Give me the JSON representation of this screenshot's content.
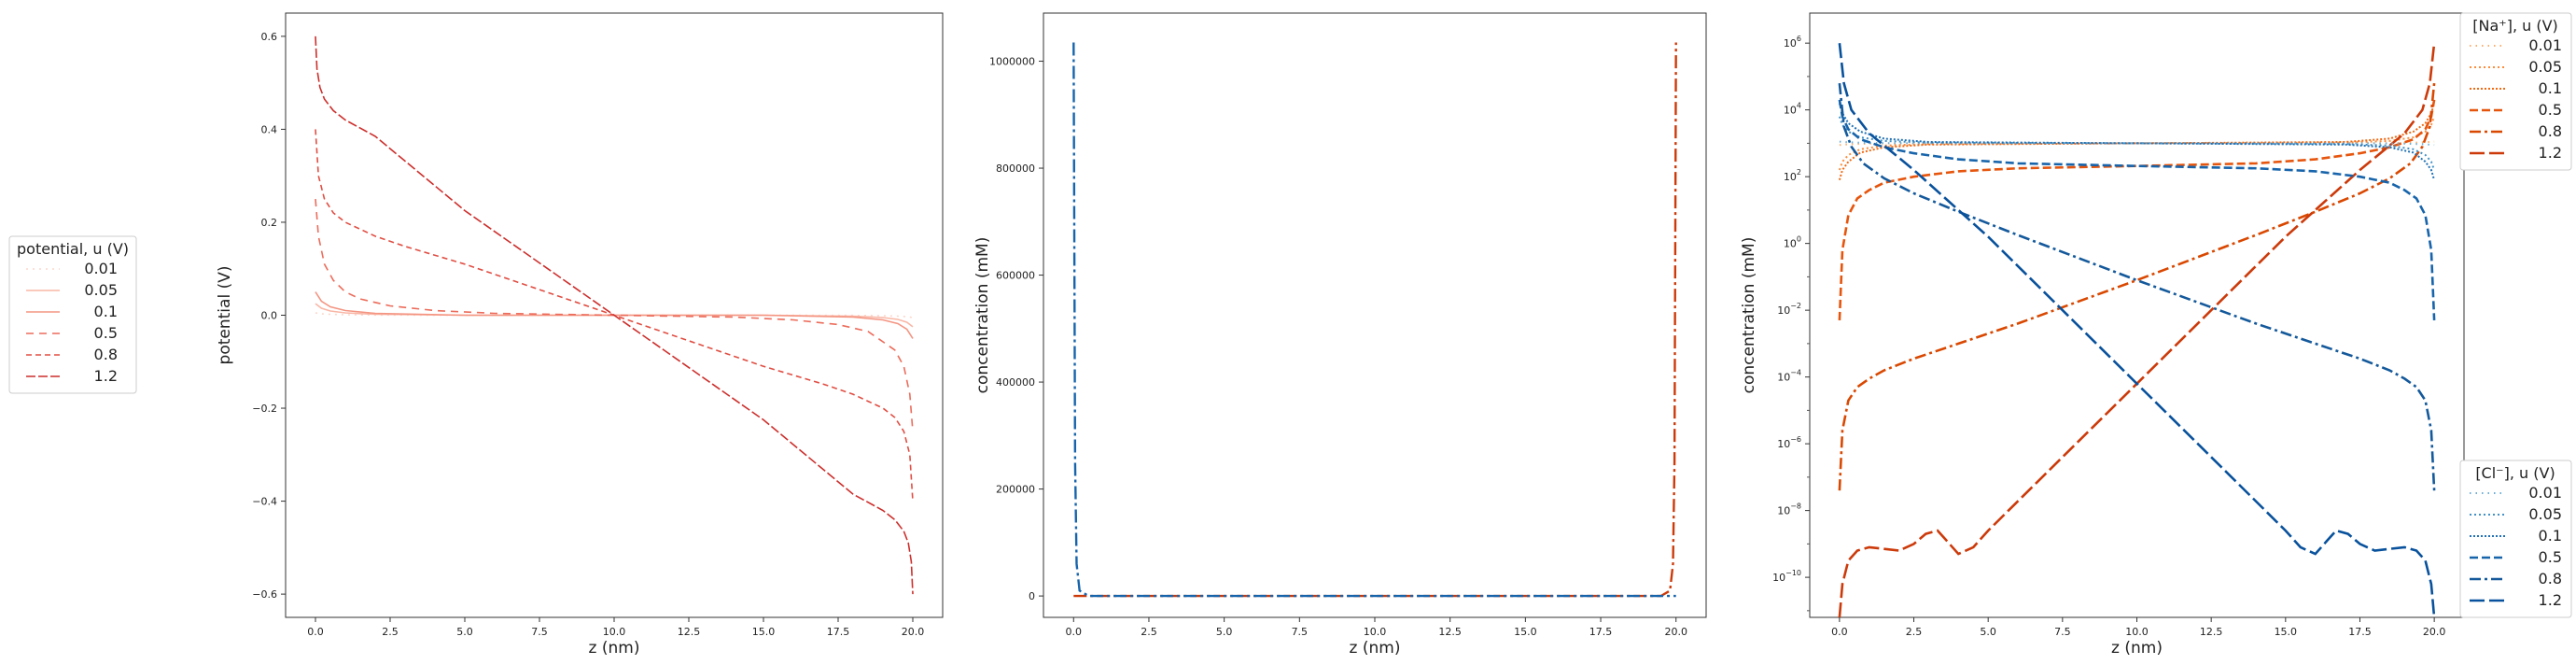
{
  "chart_data": [
    {
      "type": "line",
      "xlabel": "z (nm)",
      "ylabel": "potential (V)",
      "xlim": [
        -1,
        21
      ],
      "ylim": [
        -0.65,
        0.65
      ],
      "xticks": [
        0.0,
        2.5,
        5.0,
        7.5,
        10.0,
        12.5,
        15.0,
        17.5,
        20.0
      ],
      "xtick_labels": [
        "0.0",
        "2.5",
        "5.0",
        "7.5",
        "10.0",
        "12.5",
        "15.0",
        "17.5",
        "20.0"
      ],
      "yticks": [
        -0.6,
        -0.4,
        -0.2,
        0.0,
        0.2,
        0.4,
        0.6
      ],
      "ytick_labels": [
        "−0.6",
        "−0.4",
        "−0.2",
        "0.0",
        "0.2",
        "0.4",
        "0.6"
      ],
      "y_scale": "linear",
      "grid": false,
      "legend": {
        "title": "potential, u (V)",
        "placement": "left-outside",
        "entries": [
          "0.01",
          "0.05",
          "0.1",
          "0.5",
          "0.8",
          "1.2"
        ]
      },
      "series_colors": [
        "#fcd7cc",
        "#f9b7a6",
        "#f49582",
        "#ec6c5b",
        "#e04e43",
        "#cc2f2c"
      ],
      "series": [
        {
          "name": "0.01",
          "x": [
            0,
            0.2,
            0.5,
            1,
            2,
            5,
            10,
            15,
            18,
            19,
            19.5,
            19.8,
            20
          ],
          "y": [
            0.005,
            0.003,
            0.002,
            0.001,
            0.0005,
            0.0,
            0.0,
            0.0,
            -0.0005,
            -0.001,
            -0.002,
            -0.003,
            -0.005
          ]
        },
        {
          "name": "0.05",
          "x": [
            0,
            0.2,
            0.5,
            1,
            2,
            5,
            10,
            15,
            18,
            19,
            19.5,
            19.8,
            20
          ],
          "y": [
            0.025,
            0.015,
            0.009,
            0.005,
            0.002,
            0.0,
            0.0,
            0.0,
            -0.002,
            -0.005,
            -0.009,
            -0.015,
            -0.025
          ]
        },
        {
          "name": "0.1",
          "x": [
            0,
            0.2,
            0.5,
            1,
            2,
            5,
            10,
            15,
            18,
            19,
            19.5,
            19.8,
            20
          ],
          "y": [
            0.05,
            0.03,
            0.018,
            0.01,
            0.004,
            0.0,
            0.0,
            0.0,
            -0.004,
            -0.01,
            -0.018,
            -0.03,
            -0.05
          ]
        },
        {
          "name": "0.5",
          "x": [
            0,
            0.1,
            0.3,
            0.6,
            1,
            1.5,
            2.5,
            4,
            6,
            10,
            14,
            16,
            17.5,
            18.5,
            19.4,
            19.7,
            19.9,
            20
          ],
          "y": [
            0.25,
            0.17,
            0.11,
            0.075,
            0.05,
            0.035,
            0.02,
            0.01,
            0.004,
            0.0,
            -0.004,
            -0.01,
            -0.02,
            -0.035,
            -0.075,
            -0.11,
            -0.17,
            -0.25
          ]
        },
        {
          "name": "0.8",
          "x": [
            0,
            0.1,
            0.3,
            0.6,
            1,
            1.5,
            2,
            3,
            5,
            7.5,
            10,
            12.5,
            15,
            17,
            18,
            18.5,
            19,
            19.4,
            19.7,
            19.9,
            20
          ],
          "y": [
            0.4,
            0.3,
            0.25,
            0.22,
            0.2,
            0.185,
            0.17,
            0.148,
            0.11,
            0.055,
            0.0,
            -0.055,
            -0.11,
            -0.148,
            -0.17,
            -0.185,
            -0.2,
            -0.22,
            -0.25,
            -0.3,
            -0.4
          ]
        },
        {
          "name": "1.2",
          "x": [
            0,
            0.05,
            0.15,
            0.3,
            0.6,
            1,
            2,
            5,
            10,
            15,
            18,
            19,
            19.4,
            19.7,
            19.85,
            19.95,
            20
          ],
          "y": [
            0.6,
            0.53,
            0.49,
            0.465,
            0.44,
            0.42,
            0.385,
            0.225,
            0.0,
            -0.225,
            -0.385,
            -0.42,
            -0.44,
            -0.465,
            -0.49,
            -0.53,
            -0.6
          ]
        }
      ]
    },
    {
      "type": "line",
      "xlabel": "z (nm)",
      "ylabel": "concentration (mM)",
      "xlim": [
        -1,
        21
      ],
      "ylim": [
        -40000,
        1090000
      ],
      "xticks": [
        0.0,
        2.5,
        5.0,
        7.5,
        10.0,
        12.5,
        15.0,
        17.5,
        20.0
      ],
      "xtick_labels": [
        "0.0",
        "2.5",
        "5.0",
        "7.5",
        "10.0",
        "12.5",
        "15.0",
        "17.5",
        "20.0"
      ],
      "yticks": [
        0,
        200000,
        400000,
        600000,
        800000,
        1000000
      ],
      "ytick_labels": [
        "0",
        "200000",
        "400000",
        "600000",
        "800000",
        "1000000"
      ],
      "y_scale": "linear",
      "grid": false,
      "series": [
        {
          "color": "#cc3a0a",
          "x": [
            0,
            0.1,
            0.5,
            19.5,
            19.8,
            19.9,
            19.95,
            20
          ],
          "y": [
            0,
            0,
            0,
            0,
            10000,
            60000,
            250000,
            1035000
          ]
        },
        {
          "color": "#1764ab",
          "x": [
            0,
            0.05,
            0.1,
            0.2,
            0.5,
            20
          ],
          "y": [
            1035000,
            250000,
            60000,
            10000,
            0,
            0
          ]
        }
      ]
    },
    {
      "type": "line",
      "xlabel": "z (nm)",
      "ylabel": "concentration (mM)",
      "xlim": [
        -1,
        21
      ],
      "ylim_log10": [
        -11.2,
        6.9
      ],
      "y_scale": "log",
      "xticks": [
        0.0,
        2.5,
        5.0,
        7.5,
        10.0,
        12.5,
        15.0,
        17.5,
        20.0
      ],
      "xtick_labels": [
        "0.0",
        "2.5",
        "5.0",
        "7.5",
        "10.0",
        "12.5",
        "15.0",
        "17.5",
        "20.0"
      ],
      "ytick_exponents": [
        -10,
        -8,
        -6,
        -4,
        -2,
        0,
        2,
        4,
        6
      ],
      "grid": false,
      "legend_na": {
        "title": "[Na⁺], u (V)",
        "placement": "upper-right-outside",
        "entries": [
          "0.01",
          "0.05",
          "0.1",
          "0.5",
          "0.8",
          "1.2"
        ]
      },
      "legend_cl": {
        "title": "[Cl⁻], u (V)",
        "placement": "lower-right-outside",
        "entries": [
          "0.01",
          "0.05",
          "0.1",
          "0.5",
          "0.8",
          "1.2"
        ]
      },
      "na_colors": [
        "#fdae6b",
        "#fd8d3c",
        "#f16913",
        "#e6550d",
        "#d94801",
        "#cc3a0a"
      ],
      "cl_colors": [
        "#6baed6",
        "#4292c6",
        "#2171b5",
        "#1764ab",
        "#14599b",
        "#08519c"
      ],
      "series_na": [
        {
          "name": "0.01",
          "x": [
            0,
            0.3,
            1,
            2,
            10,
            18,
            19,
            19.7,
            20
          ],
          "log10_y": [
            2.95,
            2.97,
            2.99,
            3.0,
            3.0,
            3.0,
            3.01,
            3.03,
            3.05
          ]
        },
        {
          "name": "0.05",
          "x": [
            0,
            0.1,
            0.3,
            0.7,
            1.5,
            3,
            10,
            17,
            18.5,
            19.3,
            19.7,
            19.9,
            20
          ],
          "log10_y": [
            2.2,
            2.45,
            2.65,
            2.82,
            2.93,
            2.98,
            3.0,
            3.02,
            3.07,
            3.18,
            3.35,
            3.55,
            3.8
          ]
        },
        {
          "name": "0.1",
          "x": [
            0,
            0.1,
            0.3,
            0.7,
            1.5,
            3,
            10,
            17,
            18.5,
            19.3,
            19.7,
            19.9,
            20
          ],
          "log10_y": [
            1.9,
            2.2,
            2.45,
            2.72,
            2.88,
            2.96,
            3.0,
            3.04,
            3.14,
            3.35,
            3.6,
            3.9,
            4.2
          ]
        },
        {
          "name": "0.5",
          "x": [
            0,
            0.1,
            0.3,
            0.6,
            1,
            1.5,
            2.5,
            4,
            6,
            10,
            14,
            16,
            17.5,
            18.5,
            19.3,
            19.7,
            19.9,
            20
          ],
          "log10_y": [
            -2.3,
            -0.2,
            0.85,
            1.35,
            1.6,
            1.82,
            2.0,
            2.16,
            2.25,
            2.32,
            2.4,
            2.52,
            2.7,
            2.88,
            3.12,
            3.42,
            3.8,
            4.3
          ]
        },
        {
          "name": "0.8",
          "x": [
            0,
            0.1,
            0.3,
            0.6,
            1,
            1.5,
            2.5,
            4,
            6,
            10,
            14,
            16,
            17.5,
            18.5,
            19.2,
            19.6,
            19.85,
            20
          ],
          "log10_y": [
            -7.4,
            -5.6,
            -4.7,
            -4.3,
            -4.05,
            -3.8,
            -3.45,
            -3.0,
            -2.4,
            -1.1,
            0.25,
            0.95,
            1.5,
            1.95,
            2.4,
            2.9,
            3.5,
            4.8
          ]
        },
        {
          "name": "1.2",
          "x": [
            0,
            0.1,
            0.3,
            0.6,
            1,
            1.5,
            2,
            2.5,
            2.9,
            3.3,
            3.6,
            4.0,
            4.5,
            5,
            7.5,
            10,
            12.5,
            15,
            17.5,
            19,
            19.6,
            19.85,
            20
          ],
          "log10_y": [
            -11.2,
            -10.2,
            -9.5,
            -9.2,
            -9.1,
            -9.15,
            -9.2,
            -9.0,
            -8.7,
            -8.6,
            -8.9,
            -9.3,
            -9.1,
            -8.6,
            -6.4,
            -4.2,
            -2.0,
            0.2,
            2.2,
            3.3,
            4.0,
            4.8,
            6.0
          ]
        }
      ],
      "series_cl": [
        {
          "name": "0.01",
          "x": [
            0,
            0.3,
            1,
            2,
            10,
            18,
            19,
            19.7,
            20
          ],
          "log10_y": [
            3.05,
            3.03,
            3.01,
            3.0,
            3.0,
            3.0,
            2.99,
            2.97,
            2.95
          ]
        },
        {
          "name": "0.05",
          "x": [
            0,
            0.1,
            0.3,
            0.7,
            1.5,
            3,
            10,
            17,
            18.5,
            19.3,
            19.7,
            19.9,
            20
          ],
          "log10_y": [
            3.8,
            3.55,
            3.35,
            3.18,
            3.07,
            3.02,
            3.0,
            2.98,
            2.93,
            2.82,
            2.65,
            2.45,
            2.2
          ]
        },
        {
          "name": "0.1",
          "x": [
            0,
            0.1,
            0.3,
            0.7,
            1.5,
            3,
            10,
            17,
            18.5,
            19.3,
            19.7,
            19.9,
            20
          ],
          "log10_y": [
            4.2,
            3.9,
            3.6,
            3.35,
            3.14,
            3.04,
            3.0,
            2.96,
            2.88,
            2.72,
            2.45,
            2.2,
            1.9
          ]
        },
        {
          "name": "0.5",
          "x": [
            0,
            0.1,
            0.3,
            0.7,
            1.5,
            2.5,
            4,
            6,
            10,
            14,
            16,
            17.5,
            18.5,
            19,
            19.4,
            19.7,
            19.9,
            20
          ],
          "log10_y": [
            4.3,
            3.8,
            3.42,
            3.12,
            2.88,
            2.7,
            2.52,
            2.4,
            2.32,
            2.25,
            2.16,
            2.0,
            1.82,
            1.6,
            1.35,
            0.85,
            -0.2,
            -2.3
          ]
        },
        {
          "name": "0.8",
          "x": [
            0,
            0.15,
            0.4,
            0.8,
            1.5,
            2.5,
            4,
            6,
            10,
            14,
            16,
            17.5,
            18.5,
            19,
            19.4,
            19.7,
            19.9,
            20
          ],
          "log10_y": [
            4.8,
            3.5,
            2.9,
            2.4,
            1.95,
            1.5,
            0.95,
            0.25,
            -1.1,
            -2.4,
            -3.0,
            -3.45,
            -3.8,
            -4.05,
            -4.3,
            -4.7,
            -5.6,
            -7.4
          ]
        },
        {
          "name": "1.2",
          "x": [
            0,
            0.15,
            0.4,
            1,
            2.5,
            5,
            7.5,
            10,
            12.5,
            15,
            15.5,
            16.0,
            16.4,
            16.7,
            17.1,
            17.5,
            18,
            18.5,
            19,
            19.4,
            19.7,
            19.9,
            20
          ],
          "log10_y": [
            6.0,
            4.8,
            4.0,
            3.3,
            2.2,
            0.2,
            -2.0,
            -4.2,
            -6.4,
            -8.6,
            -9.1,
            -9.3,
            -8.9,
            -8.6,
            -8.7,
            -9.0,
            -9.2,
            -9.15,
            -9.1,
            -9.2,
            -9.5,
            -10.2,
            -11.2
          ]
        }
      ]
    }
  ]
}
